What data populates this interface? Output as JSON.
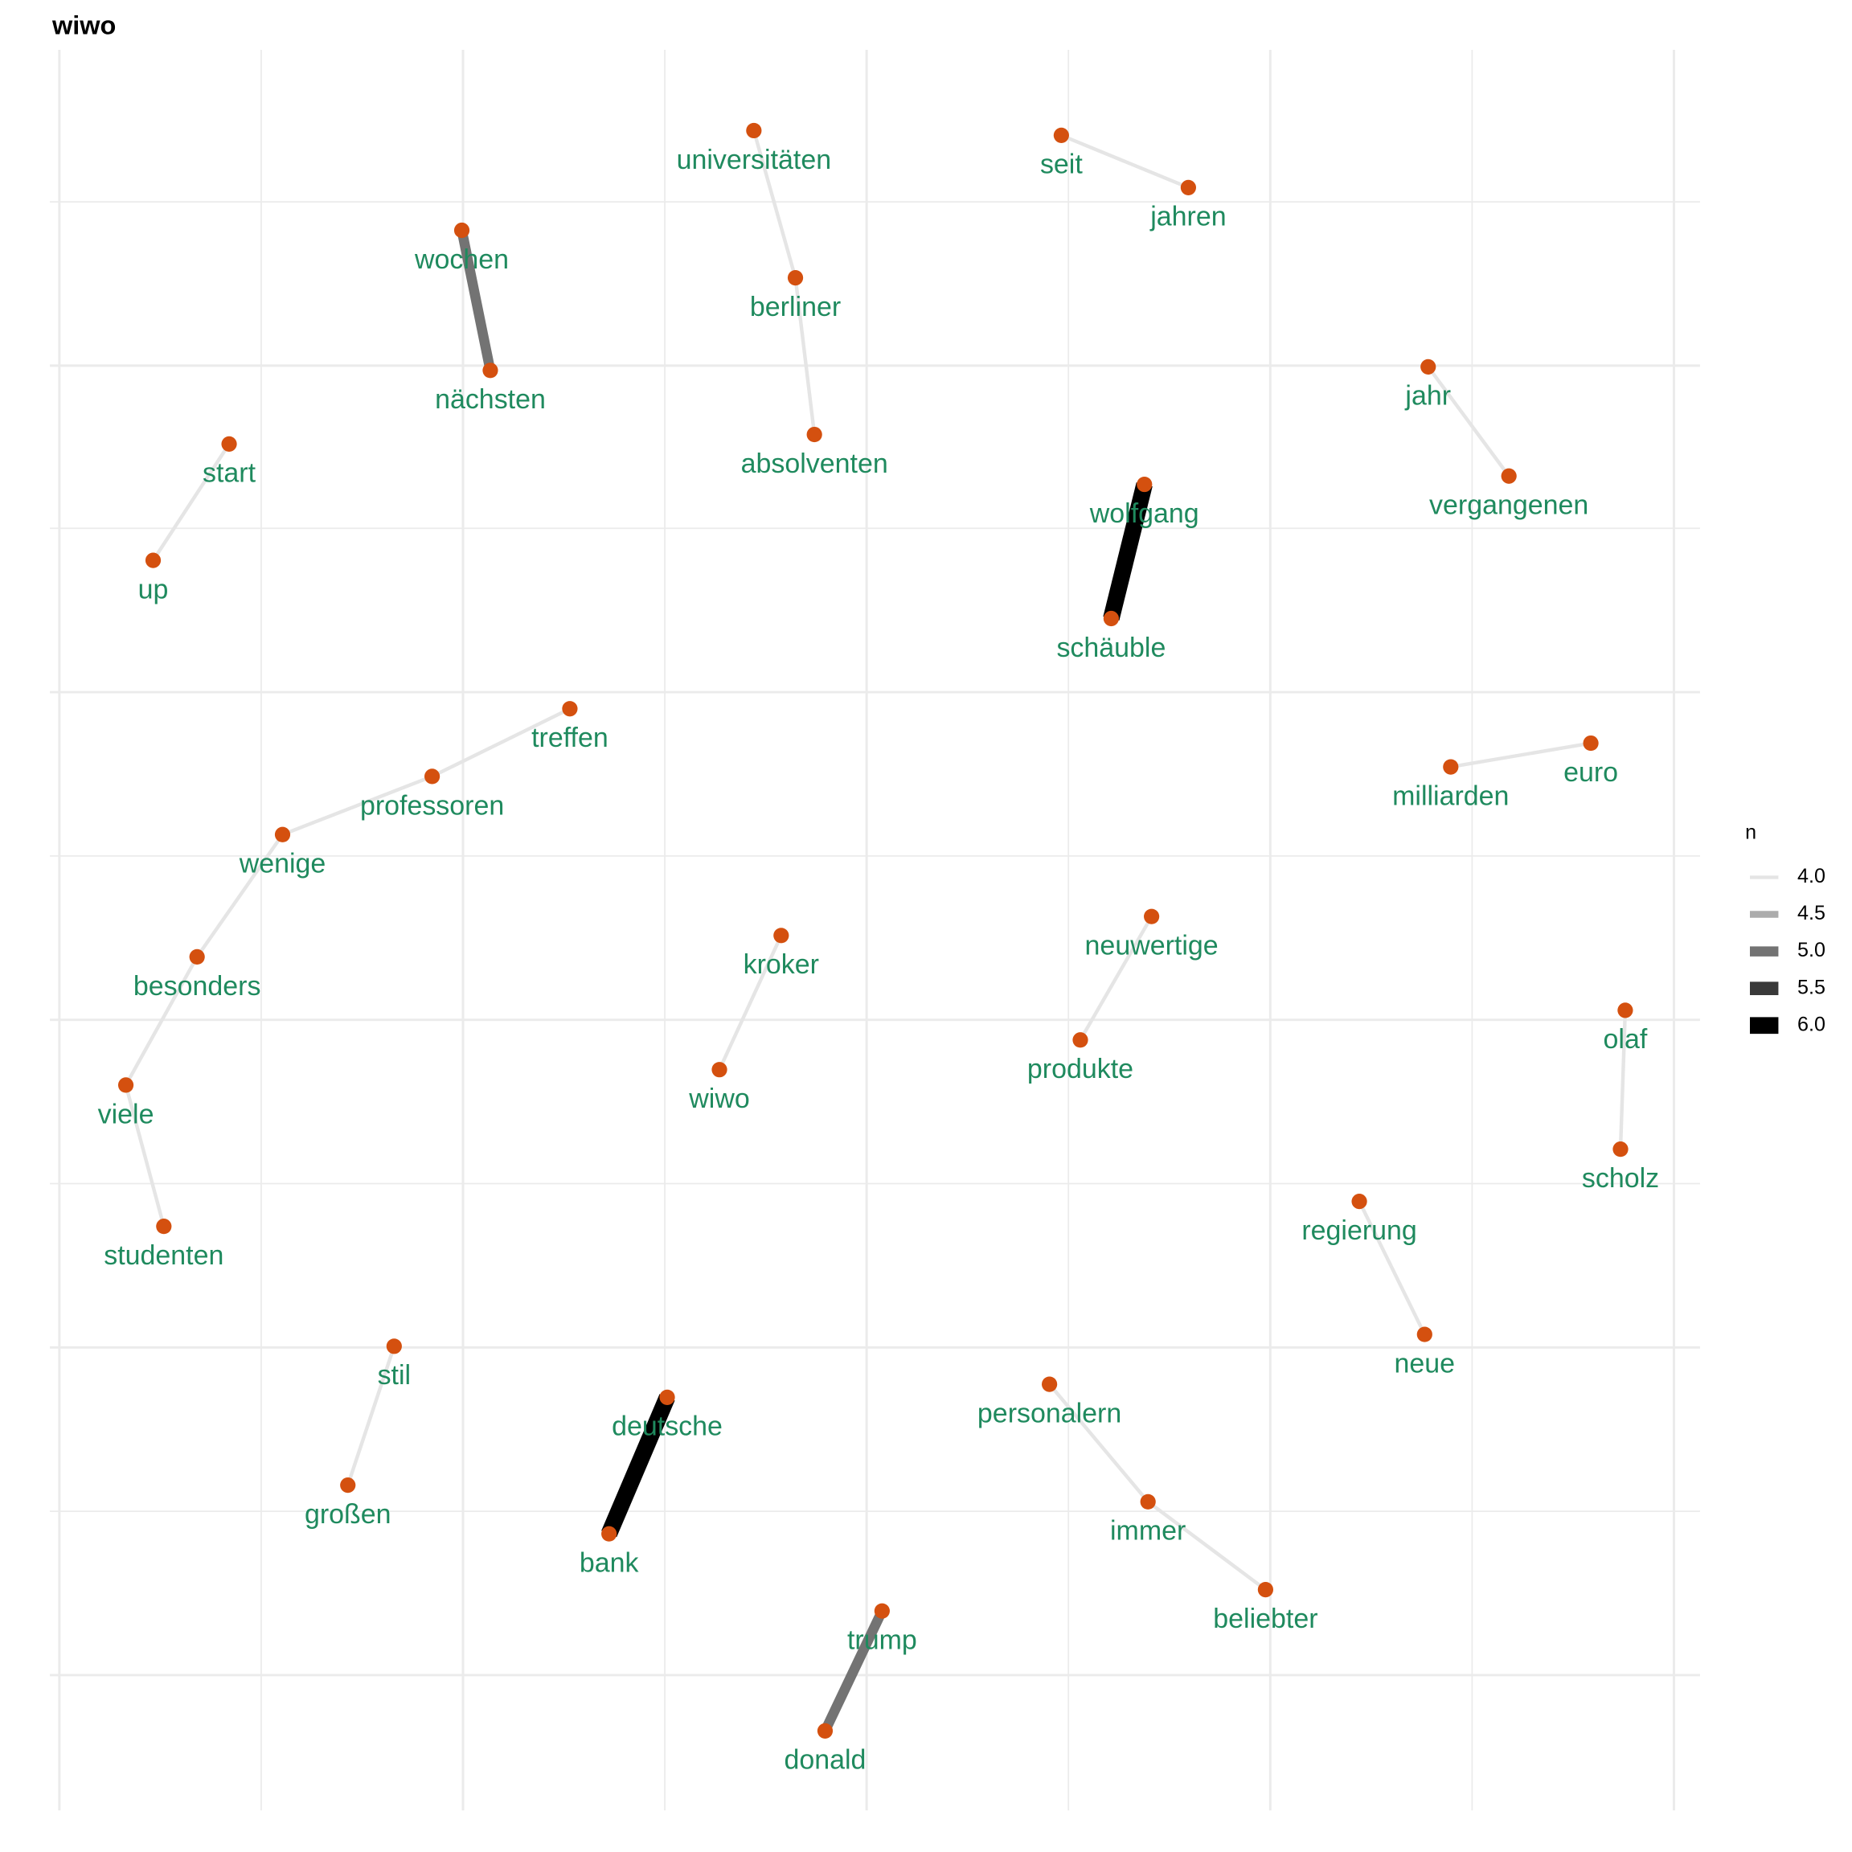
{
  "chart_data": {
    "type": "network",
    "title": "wiwo",
    "nodes": [
      "start",
      "up",
      "wochen",
      "nächsten",
      "universitäten",
      "berliner",
      "absolventen",
      "seit",
      "jahren",
      "jahr",
      "vergangenen",
      "wolfgang",
      "schäuble",
      "treffen",
      "professoren",
      "wenige",
      "besonders",
      "viele",
      "studenten",
      "milliarden",
      "euro",
      "kroker",
      "wiwo",
      "neuwertige",
      "produkte",
      "olaf",
      "scholz",
      "regierung",
      "neue",
      "stil",
      "großen",
      "deutsche",
      "bank",
      "personalern",
      "immer",
      "beliebter",
      "trump",
      "donald"
    ],
    "edges": [
      {
        "from": 0,
        "to": 1,
        "n": 4
      },
      {
        "from": 2,
        "to": 3,
        "n": 5
      },
      {
        "from": 4,
        "to": 5,
        "n": 4
      },
      {
        "from": 5,
        "to": 6,
        "n": 4
      },
      {
        "from": 7,
        "to": 8,
        "n": 4
      },
      {
        "from": 9,
        "to": 10,
        "n": 4
      },
      {
        "from": 11,
        "to": 12,
        "n": 6
      },
      {
        "from": 13,
        "to": 14,
        "n": 4
      },
      {
        "from": 14,
        "to": 15,
        "n": 4
      },
      {
        "from": 15,
        "to": 16,
        "n": 4
      },
      {
        "from": 16,
        "to": 17,
        "n": 4
      },
      {
        "from": 17,
        "to": 18,
        "n": 4
      },
      {
        "from": 19,
        "to": 20,
        "n": 4
      },
      {
        "from": 21,
        "to": 22,
        "n": 4
      },
      {
        "from": 23,
        "to": 24,
        "n": 4
      },
      {
        "from": 25,
        "to": 26,
        "n": 4
      },
      {
        "from": 27,
        "to": 28,
        "n": 4
      },
      {
        "from": 29,
        "to": 30,
        "n": 4
      },
      {
        "from": 31,
        "to": 32,
        "n": 6
      },
      {
        "from": 33,
        "to": 34,
        "n": 4
      },
      {
        "from": 34,
        "to": 35,
        "n": 4
      },
      {
        "from": 36,
        "to": 37,
        "n": 5
      }
    ],
    "legend": {
      "title": "n",
      "breaks": [
        {
          "value": 4,
          "label": "4.0"
        },
        {
          "value": 4.5,
          "label": "4.5"
        },
        {
          "value": 5,
          "label": "5.0"
        },
        {
          "value": 5.5,
          "label": "5.5"
        },
        {
          "value": 6,
          "label": "6.0"
        }
      ]
    }
  }
}
